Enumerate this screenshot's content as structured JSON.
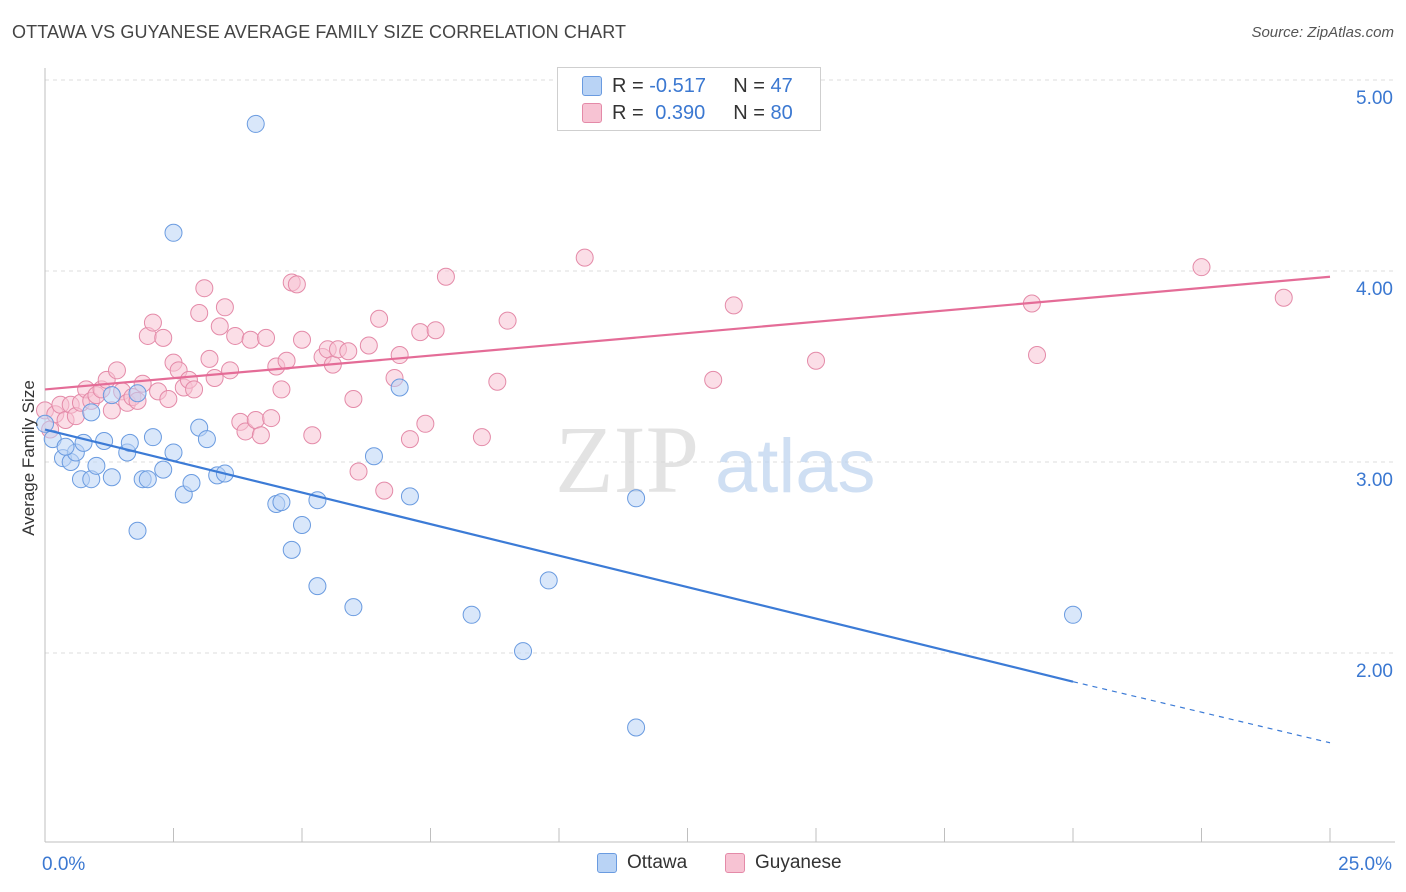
{
  "title": "OTTAWA VS GUYANESE AVERAGE FAMILY SIZE CORRELATION CHART",
  "source": "Source: ZipAtlas.com",
  "watermark": {
    "zip": "ZIP",
    "atlas": "atlas"
  },
  "colors": {
    "ottawa": "#3c7bd6",
    "ottawa_fill": "#b9d3f5",
    "guyanese": "#e46c97",
    "guyanese_fill": "#f7c3d3",
    "axis_label": "#3b78d1",
    "grid": "#dddddd"
  },
  "legend": {
    "rows": [
      {
        "r_label": "R = ",
        "r_value": "-0.517",
        "n_label": "N = ",
        "n_value": "47"
      },
      {
        "r_label": "R = ",
        "r_value": "0.390",
        "n_label": "N = ",
        "n_value": "80"
      }
    ]
  },
  "bottom_legend": [
    "Ottawa",
    "Guyanese"
  ],
  "chart_data": {
    "type": "scatter",
    "title": "OTTAWA VS GUYANESE AVERAGE FAMILY SIZE CORRELATION CHART",
    "xlabel": "",
    "ylabel": "Average Family Size",
    "xlim": [
      0,
      25
    ],
    "ylim": [
      1.2,
      5.1
    ],
    "x_tick_labels": [
      "0.0%",
      "25.0%"
    ],
    "y_ticks": [
      2.0,
      3.0,
      4.0,
      5.0
    ],
    "y_tick_labels": [
      "2.00",
      "3.00",
      "4.00",
      "5.00"
    ],
    "grid": "horizontal dashed",
    "legend_position": "top-center",
    "series": [
      {
        "name": "Ottawa",
        "trend": {
          "x": [
            0,
            20
          ],
          "y": [
            3.17,
            1.85
          ],
          "dashed_to": [
            25,
            1.53
          ]
        },
        "points": [
          [
            4.1,
            4.77
          ],
          [
            2.5,
            4.2
          ],
          [
            0.0,
            3.2
          ],
          [
            0.15,
            3.12
          ],
          [
            0.35,
            3.02
          ],
          [
            0.5,
            3.0
          ],
          [
            0.6,
            3.05
          ],
          [
            0.7,
            2.91
          ],
          [
            0.75,
            3.1
          ],
          [
            0.9,
            2.91
          ],
          [
            1.0,
            2.98
          ],
          [
            1.15,
            3.11
          ],
          [
            1.3,
            2.92
          ],
          [
            1.6,
            3.05
          ],
          [
            1.65,
            3.1
          ],
          [
            1.9,
            2.91
          ],
          [
            2.0,
            2.91
          ],
          [
            2.1,
            3.13
          ],
          [
            2.3,
            2.96
          ],
          [
            2.5,
            3.05
          ],
          [
            2.7,
            2.83
          ],
          [
            2.85,
            2.89
          ],
          [
            3.0,
            3.18
          ],
          [
            3.15,
            3.12
          ],
          [
            3.35,
            2.93
          ],
          [
            3.5,
            2.94
          ],
          [
            4.5,
            2.78
          ],
          [
            4.6,
            2.79
          ],
          [
            4.8,
            2.54
          ],
          [
            5.0,
            2.67
          ],
          [
            5.3,
            2.35
          ],
          [
            5.3,
            2.8
          ],
          [
            6.0,
            2.24
          ],
          [
            6.4,
            3.03
          ],
          [
            6.9,
            3.39
          ],
          [
            7.1,
            2.82
          ],
          [
            8.3,
            2.2
          ],
          [
            9.3,
            2.01
          ],
          [
            9.8,
            2.38
          ],
          [
            11.5,
            1.61
          ],
          [
            11.5,
            2.81
          ],
          [
            20.0,
            2.2
          ],
          [
            1.8,
            3.36
          ],
          [
            1.8,
            2.64
          ],
          [
            1.3,
            3.35
          ],
          [
            0.9,
            3.26
          ],
          [
            0.4,
            3.08
          ]
        ]
      },
      {
        "name": "Guyanese",
        "trend": {
          "x": [
            0,
            25
          ],
          "y": [
            3.38,
            3.97
          ]
        },
        "points": [
          [
            0.0,
            3.27
          ],
          [
            0.1,
            3.17
          ],
          [
            0.2,
            3.25
          ],
          [
            0.3,
            3.3
          ],
          [
            0.4,
            3.22
          ],
          [
            0.5,
            3.3
          ],
          [
            0.6,
            3.24
          ],
          [
            0.7,
            3.31
          ],
          [
            0.8,
            3.38
          ],
          [
            0.9,
            3.32
          ],
          [
            1.0,
            3.35
          ],
          [
            1.1,
            3.38
          ],
          [
            1.2,
            3.43
          ],
          [
            1.3,
            3.27
          ],
          [
            1.4,
            3.48
          ],
          [
            1.5,
            3.37
          ],
          [
            1.6,
            3.31
          ],
          [
            1.7,
            3.34
          ],
          [
            1.8,
            3.32
          ],
          [
            1.9,
            3.41
          ],
          [
            2.0,
            3.66
          ],
          [
            2.1,
            3.73
          ],
          [
            2.2,
            3.37
          ],
          [
            2.3,
            3.65
          ],
          [
            2.4,
            3.33
          ],
          [
            2.5,
            3.52
          ],
          [
            2.6,
            3.48
          ],
          [
            2.7,
            3.39
          ],
          [
            2.8,
            3.43
          ],
          [
            2.9,
            3.38
          ],
          [
            3.0,
            3.78
          ],
          [
            3.1,
            3.91
          ],
          [
            3.2,
            3.54
          ],
          [
            3.3,
            3.44
          ],
          [
            3.4,
            3.71
          ],
          [
            3.5,
            3.81
          ],
          [
            3.6,
            3.48
          ],
          [
            3.7,
            3.66
          ],
          [
            3.8,
            3.21
          ],
          [
            3.9,
            3.16
          ],
          [
            4.0,
            3.64
          ],
          [
            4.1,
            3.22
          ],
          [
            4.2,
            3.14
          ],
          [
            4.3,
            3.65
          ],
          [
            4.4,
            3.23
          ],
          [
            4.5,
            3.5
          ],
          [
            4.6,
            3.38
          ],
          [
            4.7,
            3.53
          ],
          [
            4.8,
            3.94
          ],
          [
            4.9,
            3.93
          ],
          [
            5.0,
            3.64
          ],
          [
            5.2,
            3.14
          ],
          [
            5.4,
            3.55
          ],
          [
            5.5,
            3.59
          ],
          [
            5.6,
            3.51
          ],
          [
            5.7,
            3.59
          ],
          [
            5.9,
            3.58
          ],
          [
            6.0,
            3.33
          ],
          [
            6.1,
            2.95
          ],
          [
            6.3,
            3.61
          ],
          [
            6.5,
            3.75
          ],
          [
            6.6,
            2.85
          ],
          [
            6.8,
            3.44
          ],
          [
            6.9,
            3.56
          ],
          [
            7.1,
            3.12
          ],
          [
            7.3,
            3.68
          ],
          [
            7.4,
            3.2
          ],
          [
            7.6,
            3.69
          ],
          [
            7.8,
            3.97
          ],
          [
            8.5,
            3.13
          ],
          [
            8.8,
            3.42
          ],
          [
            9.0,
            3.74
          ],
          [
            10.5,
            4.07
          ],
          [
            13.0,
            3.43
          ],
          [
            13.4,
            3.82
          ],
          [
            15.0,
            3.53
          ],
          [
            19.2,
            3.83
          ],
          [
            19.3,
            3.56
          ],
          [
            22.5,
            4.02
          ],
          [
            24.1,
            3.86
          ]
        ]
      }
    ]
  }
}
